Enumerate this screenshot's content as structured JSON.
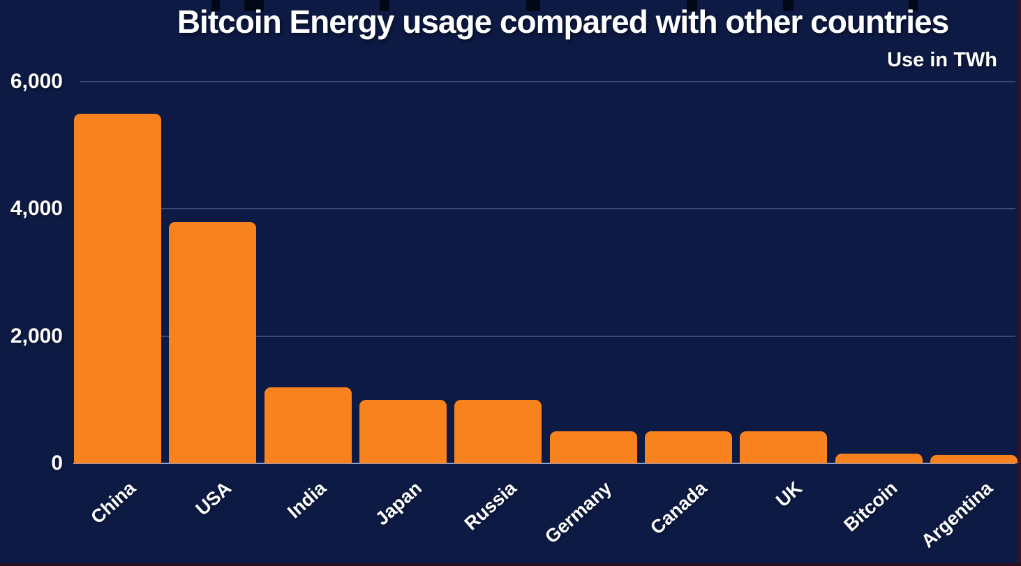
{
  "chart_data": {
    "type": "bar",
    "title": "Bitcoin Energy usage compared with other countries",
    "subtitle": "Use in TWh",
    "unit": "TWh",
    "categories": [
      "China",
      "USA",
      "India",
      "Japan",
      "Russia",
      "Germany",
      "Canada",
      "UK",
      "Bitcoin",
      "Argentina"
    ],
    "values": [
      5500,
      3800,
      1200,
      1000,
      1000,
      500,
      500,
      500,
      150,
      130
    ],
    "xlabel": "",
    "ylabel": "Use in TWh",
    "ylim": [
      0,
      6000
    ],
    "yticks": [
      6000,
      4000,
      2000,
      0
    ],
    "ytick_labels": [
      "6,000",
      "4,000",
      "2,000",
      "0"
    ],
    "grid": "horizontal",
    "legend_position": "none",
    "colors": {
      "background": "#0d1a44",
      "bar": "#f8821d",
      "text": "#ffffff",
      "gridline": "#5e70aa",
      "axis_line": "#93a0c6",
      "edge_border": "#3a1226"
    }
  }
}
